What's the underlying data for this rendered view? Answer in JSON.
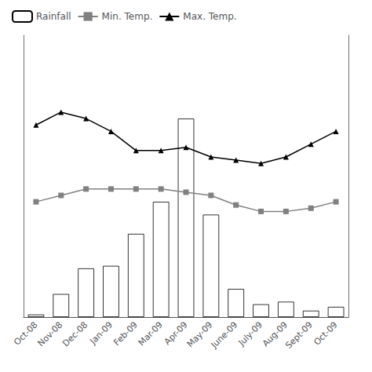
{
  "chart_data": {
    "type": "bar",
    "categories": [
      "Oct-08",
      "Nov-08",
      "Dec-08",
      "Jan-09",
      "Feb-09",
      "Mar-09",
      "Apr-09",
      "May-09",
      "June-09",
      "July-09",
      "Aug-09",
      "Sept-09",
      "Oct-09"
    ],
    "series": [
      {
        "name": "Rainfall",
        "type": "bar",
        "color": "#ffffff",
        "values": [
          2,
          18,
          38,
          40,
          65,
          90,
          155,
          80,
          22,
          10,
          12,
          5,
          8
        ]
      },
      {
        "name": "Min. Temp.",
        "type": "line",
        "color": "#808080",
        "marker": "square",
        "axis": "y2",
        "values": [
          18,
          19,
          20,
          20,
          20,
          20,
          19.5,
          19,
          17.5,
          16.5,
          16.5,
          17,
          18
        ]
      },
      {
        "name": "Max. Temp.",
        "type": "line",
        "color": "#000000",
        "marker": "triangle",
        "axis": "y2",
        "values": [
          30,
          32,
          31,
          29,
          26,
          26,
          26.5,
          25,
          24.5,
          24,
          25,
          27,
          29
        ]
      }
    ],
    "ylim": [
      0,
      220
    ],
    "y2lim": [
      0,
      44
    ],
    "tick_labels": "x",
    "grid": false,
    "legend": "upper left"
  }
}
